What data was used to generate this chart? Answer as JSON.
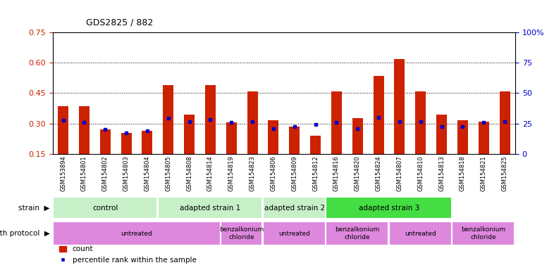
{
  "title": "GDS2825 / 882",
  "samples": [
    "GSM153894",
    "GSM154801",
    "GSM154802",
    "GSM154803",
    "GSM154804",
    "GSM154805",
    "GSM154808",
    "GSM154814",
    "GSM154819",
    "GSM154823",
    "GSM154806",
    "GSM154809",
    "GSM154812",
    "GSM154816",
    "GSM154820",
    "GSM154824",
    "GSM154807",
    "GSM154810",
    "GSM154813",
    "GSM154818",
    "GSM154821",
    "GSM154825"
  ],
  "count_values": [
    0.385,
    0.385,
    0.27,
    0.255,
    0.265,
    0.49,
    0.345,
    0.49,
    0.305,
    0.46,
    0.315,
    0.285,
    0.24,
    0.46,
    0.325,
    0.535,
    0.62,
    0.46,
    0.345,
    0.315,
    0.31,
    0.46
  ],
  "percentile_values": [
    0.315,
    0.305,
    0.27,
    0.255,
    0.265,
    0.325,
    0.31,
    0.32,
    0.305,
    0.31,
    0.275,
    0.285,
    0.295,
    0.305,
    0.275,
    0.33,
    0.31,
    0.31,
    0.285,
    0.285,
    0.305,
    0.31
  ],
  "ylim_left": [
    0.15,
    0.75
  ],
  "ylim_right": [
    0,
    100
  ],
  "yticks_left": [
    0.15,
    0.3,
    0.45,
    0.6,
    0.75
  ],
  "yticks_right": [
    0,
    25,
    50,
    75,
    100
  ],
  "ytick_labels_right": [
    "0",
    "25",
    "50",
    "75",
    "100%"
  ],
  "strain_boundaries": [
    {
      "start": 0,
      "end": 5,
      "label": "control",
      "color": "#c8f0c8"
    },
    {
      "start": 5,
      "end": 10,
      "label": "adapted strain 1",
      "color": "#c8f0c8"
    },
    {
      "start": 10,
      "end": 13,
      "label": "adapted strain 2",
      "color": "#c8f0c8"
    },
    {
      "start": 13,
      "end": 19,
      "label": "adapted strain 3",
      "color": "#44dd44"
    }
  ],
  "protocol_boundaries": [
    {
      "start": 0,
      "end": 8,
      "label": "untreated",
      "color": "#dd88dd"
    },
    {
      "start": 8,
      "end": 10,
      "label": "benzalkonium\nchloride",
      "color": "#dd88dd"
    },
    {
      "start": 10,
      "end": 13,
      "label": "untreated",
      "color": "#dd88dd"
    },
    {
      "start": 13,
      "end": 16,
      "label": "benzalkonium\nchloride",
      "color": "#dd88dd"
    },
    {
      "start": 16,
      "end": 19,
      "label": "untreated",
      "color": "#dd88dd"
    },
    {
      "start": 19,
      "end": 22,
      "label": "benzalkonium\nchloride",
      "color": "#dd88dd"
    }
  ],
  "bar_color": "#cc2200",
  "dot_color": "#0000cc",
  "left_label_color": "#cc2200",
  "right_label_color": "#0000cc"
}
